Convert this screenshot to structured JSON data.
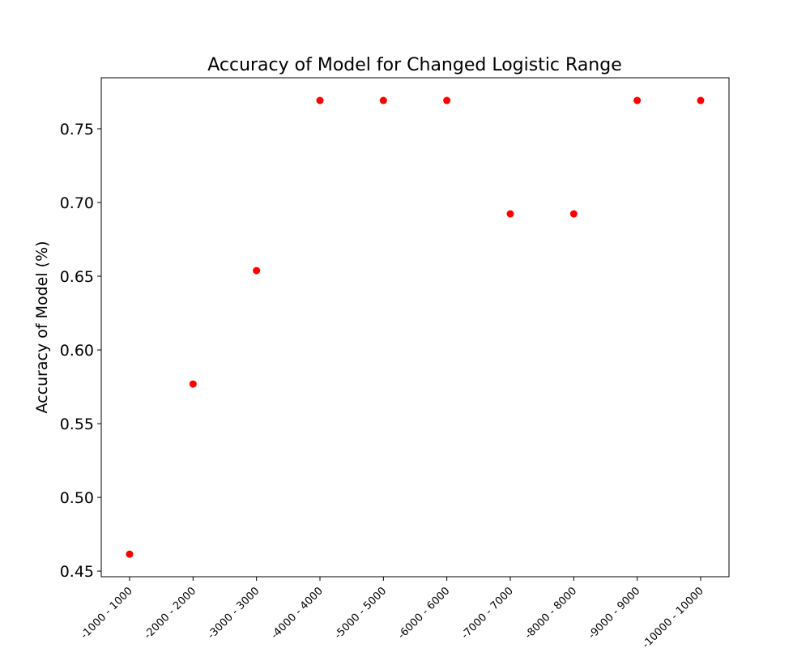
{
  "chart_data": {
    "type": "scatter",
    "title": "Accuracy of Model for Changed Logistic Range",
    "xlabel": "",
    "ylabel": "Accuracy of Model (%)",
    "categories": [
      "-1000 - 1000",
      "-2000 - 2000",
      "-3000 - 3000",
      "-4000 - 4000",
      "-5000 - 5000",
      "-6000 - 6000",
      "-7000 - 7000",
      "-8000 - 8000",
      "-9000 - 9000",
      "-10000 - 10000"
    ],
    "values": [
      0.4615,
      0.5769,
      0.6538,
      0.7692,
      0.7692,
      0.7692,
      0.6923,
      0.6923,
      0.7692,
      0.7692
    ],
    "ylim": [
      0.4462,
      0.7846
    ],
    "yticks": [
      "0.45",
      "0.50",
      "0.55",
      "0.60",
      "0.65",
      "0.70",
      "0.75"
    ],
    "marker_color": "#ff0000",
    "grid": false,
    "legend": "none"
  }
}
